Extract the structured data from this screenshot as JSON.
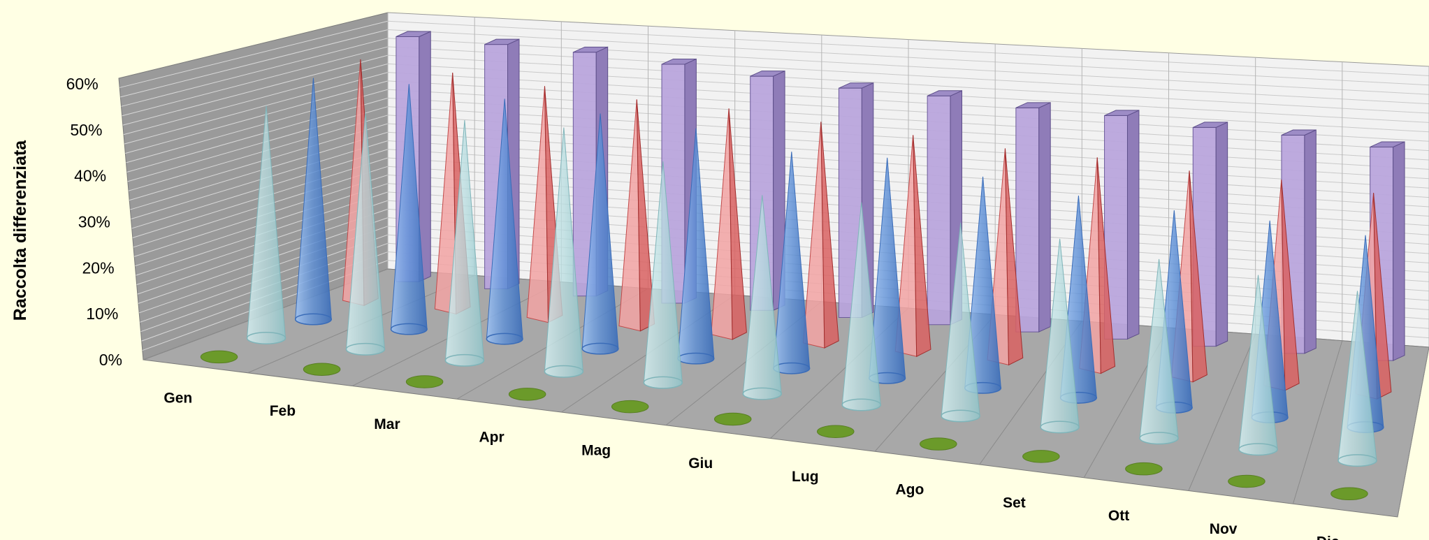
{
  "chart_data": {
    "type": "bar",
    "style": "3d-perspective-depth-series",
    "title": "",
    "xlabel": "",
    "ylabel": "Raccolta differenziata",
    "ylim": [
      0,
      0.6
    ],
    "yticks": [
      "0%",
      "10%",
      "20%",
      "30%",
      "40%",
      "50%",
      "60%"
    ],
    "grid": true,
    "legend": "none",
    "categories": [
      "Gen",
      "Feb",
      "Mar",
      "Apr",
      "Mag",
      "Giu",
      "Lug",
      "Ago",
      "Set",
      "Ott",
      "Nov",
      "Dic"
    ],
    "series": [
      {
        "shape": "disc",
        "color": "#6b9a2a",
        "values": [
          0.005,
          0.005,
          0.005,
          0.005,
          0.005,
          0.005,
          0.005,
          0.005,
          0.005,
          0.005,
          0.005,
          0.005
        ]
      },
      {
        "shape": "cone",
        "color": "#b8dde0",
        "values": [
          0.52,
          0.53,
          0.54,
          0.55,
          0.5,
          0.45,
          0.46,
          0.44,
          0.43,
          0.41,
          0.4,
          0.39
        ]
      },
      {
        "shape": "cone",
        "color": "#5b8ed6",
        "values": [
          0.55,
          0.56,
          0.55,
          0.54,
          0.53,
          0.5,
          0.51,
          0.49,
          0.47,
          0.46,
          0.46,
          0.45
        ]
      },
      {
        "shape": "pyramid",
        "color": "#e87a7a",
        "values": [
          0.56,
          0.55,
          0.54,
          0.53,
          0.53,
          0.52,
          0.51,
          0.5,
          0.5,
          0.49,
          0.49,
          0.48
        ]
      },
      {
        "shape": "bar",
        "color": "#b8a4dc",
        "values": [
          0.58,
          0.58,
          0.58,
          0.57,
          0.56,
          0.55,
          0.55,
          0.54,
          0.54,
          0.53,
          0.53,
          0.52
        ]
      }
    ]
  }
}
